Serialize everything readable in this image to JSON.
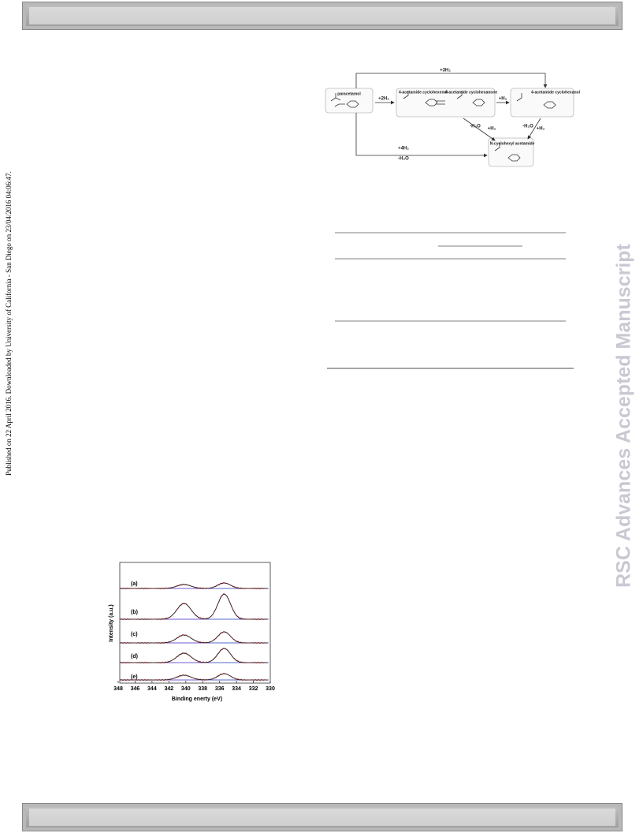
{
  "sidebar": {
    "notice": "Published on 22 April 2016. Downloaded by University of California - San Diego on 23/04/2016 04:06:47."
  },
  "watermark": "RSC Advances Accepted Manuscript",
  "scheme": {
    "compounds": [
      "paracetamol",
      "4-acetamide cyclohexenol",
      "4-acetamide cyclohexanone",
      "4-acetamide cyclohexanol",
      "N-cyclohexyl acetamide"
    ],
    "labels": [
      "+3H₂",
      "+2H₂",
      "+H₂",
      "-H₂O",
      "+H₂",
      "-H₂O",
      "+H₂",
      "+4H₂",
      "-H₂O"
    ]
  },
  "figure": {
    "xlabel": "Binding enerty (eV)",
    "ylabel": "Intensity (a.u.)",
    "curve_labels": [
      "(a)",
      "(b)",
      "(c)",
      "(d)",
      "(e)"
    ],
    "xlim": [
      348,
      330
    ],
    "xticks": [
      348,
      346,
      344,
      342,
      340,
      338,
      336,
      334,
      332,
      330
    ]
  }
}
